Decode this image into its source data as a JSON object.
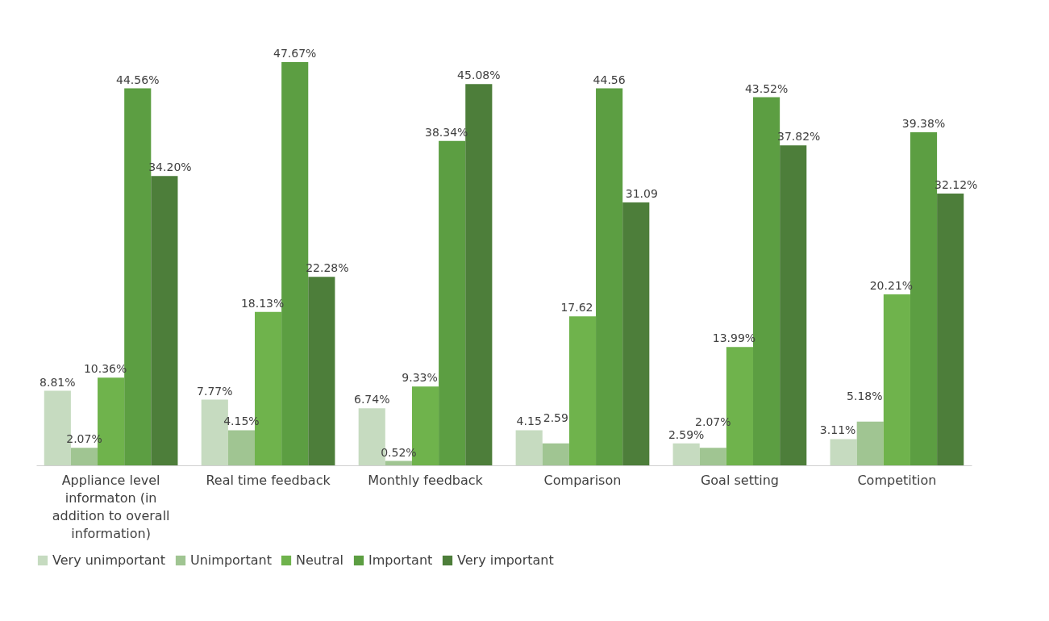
{
  "chart_data": {
    "type": "bar",
    "categories": [
      "Appliance level informaton (in addition to overall information)",
      "Real time feedback",
      "Monthly feedback",
      "Comparison",
      "Goal setting",
      "Competition"
    ],
    "series": [
      {
        "name": "Very unimportant",
        "color": "#c6dbc0",
        "values": [
          8.81,
          7.77,
          6.74,
          4.15,
          2.59,
          3.11
        ],
        "value_labels": [
          "8.81%",
          "7.77%",
          "6.74%",
          "4.15",
          "2.59%",
          "3.11%"
        ]
      },
      {
        "name": "Unimportant",
        "color": "#a0c592",
        "values": [
          2.07,
          4.15,
          0.52,
          2.59,
          2.07,
          5.18
        ],
        "value_labels": [
          "2.07%",
          "4.15%",
          "0.52%",
          "2.59",
          "2.07%",
          "5.18%"
        ]
      },
      {
        "name": "Neutral",
        "color": "#6fb34c",
        "values": [
          10.36,
          18.13,
          9.33,
          17.62,
          13.99,
          20.21
        ],
        "value_labels": [
          "10.36%",
          "18.13%",
          "9.33%",
          "17.62",
          "13.99%",
          "20.21%"
        ]
      },
      {
        "name": "Important",
        "color": "#5c9e42",
        "values": [
          44.56,
          47.67,
          38.34,
          44.56,
          43.52,
          39.38
        ],
        "value_labels": [
          "44.56%",
          "47.67%",
          "38.34%",
          "44.56",
          "43.52%",
          "39.38%"
        ]
      },
      {
        "name": "Very important",
        "color": "#4d7e3a",
        "values": [
          34.2,
          22.28,
          45.08,
          31.09,
          37.82,
          32.12
        ],
        "value_labels": [
          "34.20%",
          "22.28%",
          "45.08%",
          "31.09",
          "37.82%",
          "32.12%"
        ]
      }
    ],
    "legend": "bottom",
    "grid": false
  }
}
